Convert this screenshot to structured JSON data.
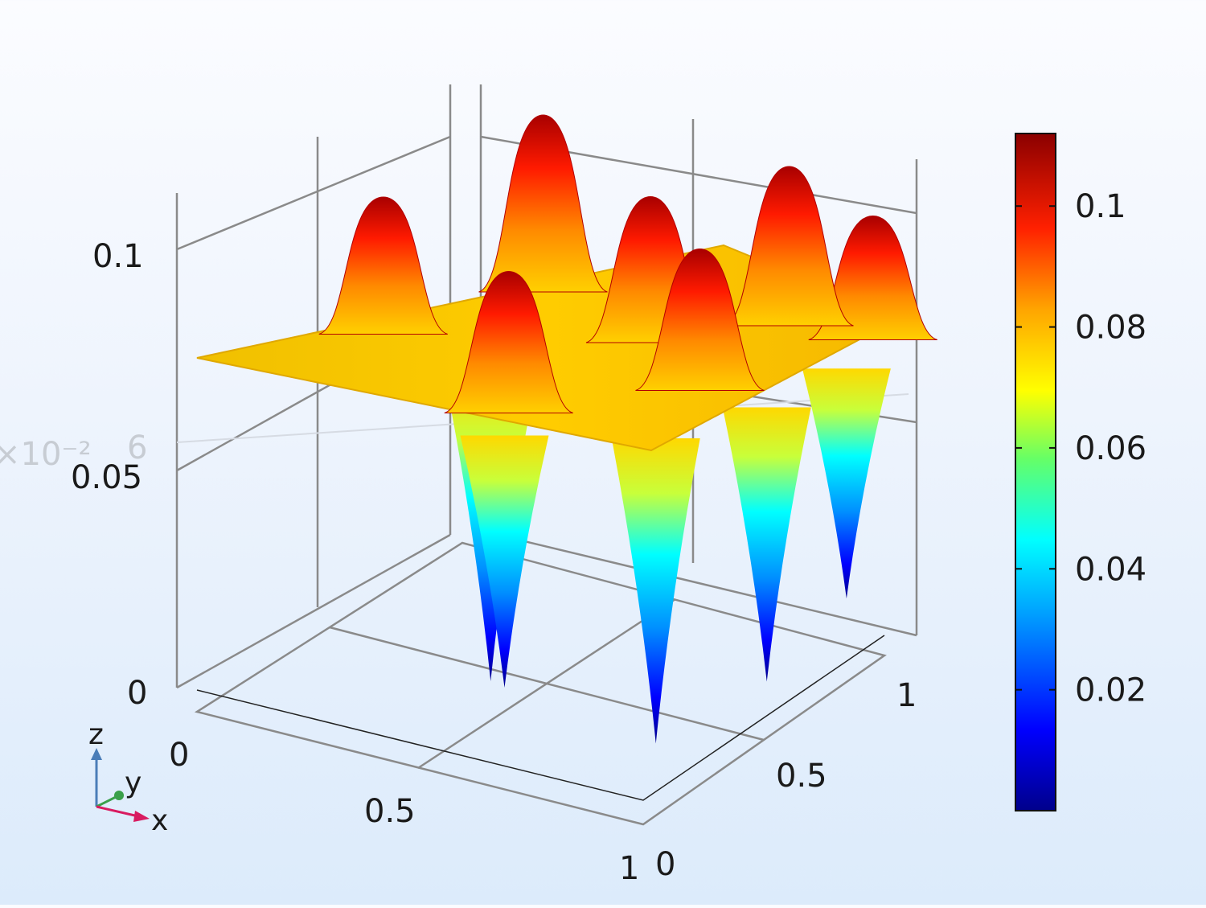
{
  "chart_data": {
    "type": "surface3d",
    "title": "",
    "xlabel": "x",
    "ylabel": "y",
    "zlabel": "z",
    "xlim": [
      0,
      1
    ],
    "ylim": [
      0,
      1
    ],
    "zlim": [
      0,
      0.115
    ],
    "x_ticks": [
      "0",
      "0.5",
      "1"
    ],
    "y_ticks": [
      "0",
      "0.5",
      "1"
    ],
    "z_ticks": [
      "0",
      "0.05",
      "0.1"
    ],
    "ghost_tick": {
      "label": "6",
      "multiplier": "×10⁻²"
    },
    "colorbar": {
      "ticks": [
        "0.02",
        "0.04",
        "0.06",
        "0.08",
        "0.1"
      ],
      "range": [
        0,
        0.112
      ],
      "colormap": "rainbow",
      "colors": [
        "#00008b",
        "#0000ff",
        "#00a8ff",
        "#00ffff",
        "#66ff66",
        "#ffff00",
        "#ffa500",
        "#ff2000",
        "#8b0000"
      ]
    },
    "surface": {
      "baseline_value": 0.072,
      "peaks": [
        {
          "x": 0.15,
          "y": 0.45,
          "z": 0.103
        },
        {
          "x": 0.3,
          "y": 0.8,
          "z": 0.112
        },
        {
          "x": 0.55,
          "y": 0.25,
          "z": 0.104
        },
        {
          "x": 0.6,
          "y": 0.7,
          "z": 0.105
        },
        {
          "x": 0.78,
          "y": 0.92,
          "z": 0.108
        },
        {
          "x": 0.8,
          "y": 0.55,
          "z": 0.104
        },
        {
          "x": 0.95,
          "y": 0.95,
          "z": 0.1
        }
      ],
      "wells": [
        {
          "x": 0.45,
          "y": 0.35,
          "z": 0.005
        },
        {
          "x": 0.6,
          "y": 0.15,
          "z": 0.015
        },
        {
          "x": 0.85,
          "y": 0.3,
          "z": 0.003
        },
        {
          "x": 0.95,
          "y": 0.55,
          "z": 0.01
        },
        {
          "x": 0.98,
          "y": 0.8,
          "z": 0.02
        }
      ]
    }
  },
  "axis_indicator": {
    "z": "z",
    "y": "y",
    "x": "x"
  }
}
